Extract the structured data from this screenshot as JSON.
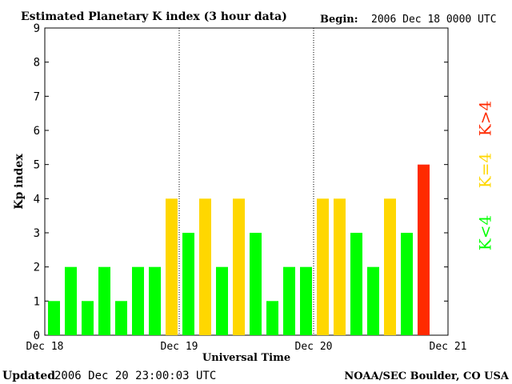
{
  "chart_data": {
    "type": "bar",
    "title": "Estimated Planetary K index (3 hour data)",
    "begin_label": "Begin:",
    "begin_value": "2006 Dec 18 0000 UTC",
    "ylabel": "Kp index",
    "xlabel": "Universal Time",
    "ylim": [
      0,
      9
    ],
    "yticks": [
      "0",
      "1",
      "2",
      "3",
      "4",
      "5",
      "6",
      "7",
      "8",
      "9"
    ],
    "xticks": [
      "Dec 18",
      "Dec 19",
      "Dec 20",
      "Dec 21"
    ],
    "values": [
      1,
      2,
      1,
      2,
      1,
      2,
      2,
      4,
      3,
      4,
      2,
      4,
      3,
      1,
      2,
      2,
      4,
      4,
      3,
      2,
      4,
      3,
      5
    ],
    "legend": [
      {
        "label": "K<4",
        "color": "#00ff00"
      },
      {
        "label": "K=4",
        "color": "#ffd700"
      },
      {
        "label": "K>4",
        "color": "#ff2a00"
      }
    ],
    "colors": {
      "low": "#00ff00",
      "mid": "#ffd700",
      "high": "#ff2a00"
    }
  },
  "footer": {
    "updated_label": "Updated",
    "updated_value": "2006 Dec 20 23:00:03 UTC",
    "source": "NOAA/SEC Boulder, CO USA"
  }
}
